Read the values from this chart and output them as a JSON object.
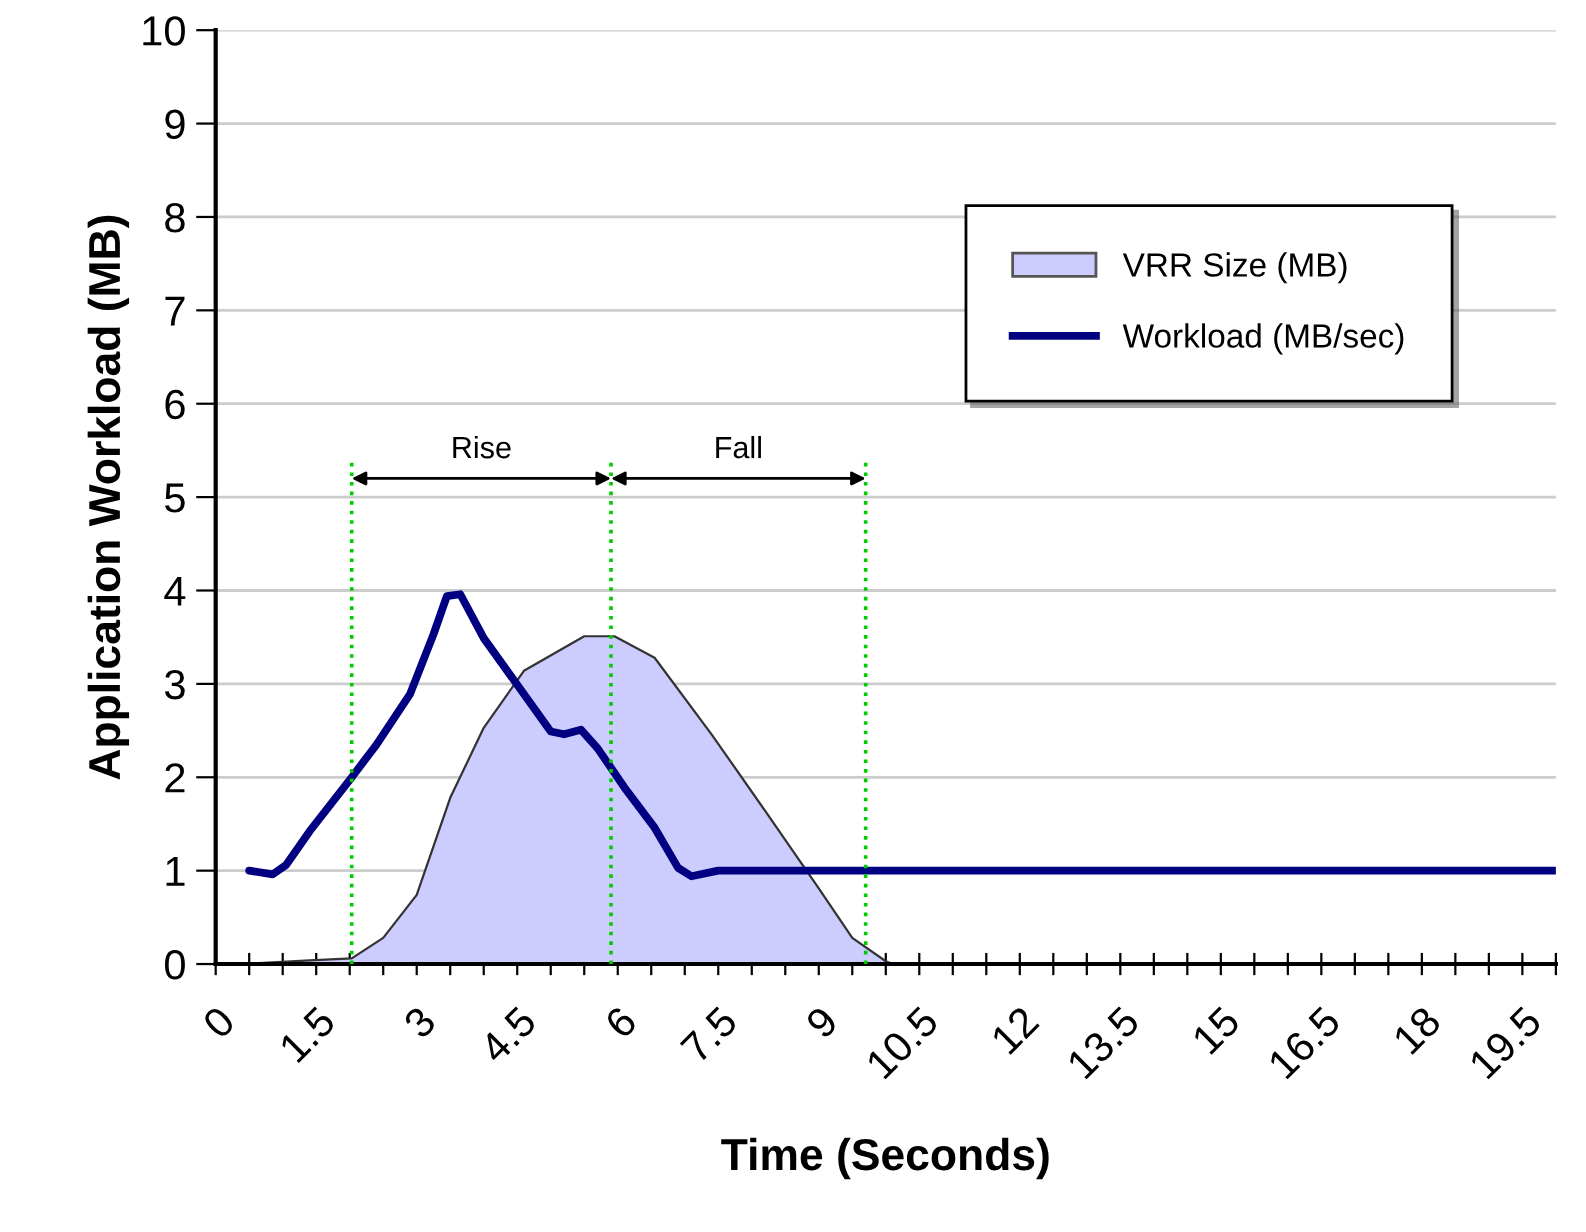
{
  "chart_data": {
    "type": "area",
    "xlabel": "Time (Seconds)",
    "ylabel": "Application Workload (MB)",
    "series": [
      {
        "name": "VRR Size (MB)",
        "color": "#ccccff",
        "x": [
          0.4,
          1.4,
          2.03,
          2.5,
          3.0,
          3.5,
          4.0,
          4.6,
          5.5,
          5.95,
          6.55,
          7.4,
          8.2,
          9.0,
          9.5,
          10.0,
          10.1,
          20
        ],
        "values": [
          0,
          0.04,
          0.06,
          0.28,
          0.74,
          1.78,
          2.53,
          3.14,
          3.51,
          3.51,
          3.28,
          2.46,
          1.64,
          0.81,
          0.28,
          0.03,
          0,
          0
        ]
      },
      {
        "name": "Workload (MB/sec)",
        "type": "line",
        "color": "#000080",
        "x": [
          0.5,
          0.85,
          1.05,
          1.4,
          2.03,
          2.4,
          2.9,
          3.25,
          3.45,
          3.65,
          4.0,
          4.5,
          5.0,
          5.2,
          5.45,
          5.7,
          6.1,
          6.55,
          6.9,
          7.1,
          7.5,
          20
        ],
        "values": [
          1.0,
          0.96,
          1.06,
          1.42,
          2.0,
          2.35,
          2.89,
          3.53,
          3.94,
          3.96,
          3.49,
          2.99,
          2.49,
          2.46,
          2.51,
          2.31,
          1.89,
          1.46,
          1.03,
          0.94,
          1.0,
          1.0
        ]
      }
    ],
    "xlim": [
      0,
      20
    ],
    "ylim": [
      0,
      10
    ],
    "xticks": [
      0,
      {
        "value": 0.5,
        "label": null
      },
      {
        "value": 1,
        "label": null
      },
      1.5,
      {
        "value": 2,
        "label": null
      },
      {
        "value": 2.5,
        "label": null
      },
      3,
      {
        "value": 3.5,
        "label": null
      },
      {
        "value": 4,
        "label": null
      },
      4.5,
      {
        "value": 5,
        "label": null
      },
      {
        "value": 5.5,
        "label": null
      },
      6,
      {
        "value": 6.5,
        "label": null
      },
      {
        "value": 7,
        "label": null
      },
      7.5,
      {
        "value": 8,
        "label": null
      },
      {
        "value": 8.5,
        "label": null
      },
      9,
      {
        "value": 9.5,
        "label": null
      },
      {
        "value": 10,
        "label": null
      },
      10.5,
      {
        "value": 11,
        "label": null
      },
      {
        "value": 11.5,
        "label": null
      },
      12,
      {
        "value": 12.5,
        "label": null
      },
      {
        "value": 13,
        "label": null
      },
      13.5,
      {
        "value": 14,
        "label": null
      },
      {
        "value": 14.5,
        "label": null
      },
      15,
      {
        "value": 15.5,
        "label": null
      },
      {
        "value": 16,
        "label": null
      },
      16.5,
      {
        "value": 17,
        "label": null
      },
      {
        "value": 17.5,
        "label": null
      },
      18,
      {
        "value": 18.5,
        "label": null
      },
      {
        "value": 19,
        "label": null
      },
      19.5,
      {
        "value": 20,
        "label": null
      }
    ],
    "yticks": [
      0,
      1,
      2,
      3,
      4,
      5,
      6,
      7,
      8,
      9,
      10
    ],
    "grid": "y",
    "legend": "top right",
    "marker": "none",
    "line_style": "solid",
    "ref_lines": [
      {
        "axis": "x",
        "value": 2.03,
        "color": "#00cc00",
        "line_style": "dotted"
      },
      {
        "axis": "x",
        "value": 5.9,
        "color": "#00cc00",
        "line_style": "dotted"
      },
      {
        "axis": "x",
        "value": 9.7,
        "color": "#00cc00",
        "line_style": "dotted"
      }
    ],
    "annotations": [
      "Rise",
      "Fall"
    ]
  }
}
